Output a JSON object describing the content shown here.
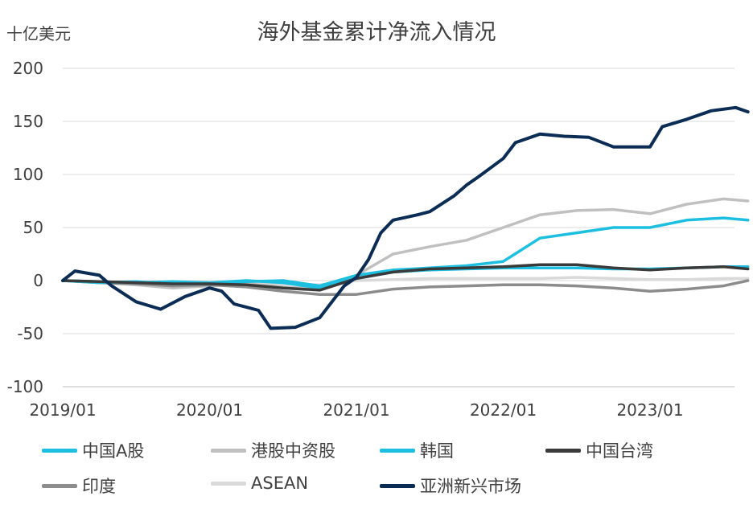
{
  "chart_data": {
    "type": "line",
    "title": "海外基金累计净流入情况",
    "unit_label": "十亿美元",
    "ylim": [
      -100,
      200
    ],
    "yticks": [
      "200",
      "150",
      "100",
      "50",
      "0",
      "-50",
      "-100"
    ],
    "xticks": [
      "2019/01",
      "2020/01",
      "2021/01",
      "2022/01",
      "2023/01"
    ],
    "grid": true,
    "legend_position": "bottom",
    "series": [
      {
        "name": "中国A股",
        "color": "#1CBFE0",
        "points": [
          [
            "2019-01",
            0
          ],
          [
            "2019-04",
            -2
          ],
          [
            "2019-07",
            -1
          ],
          [
            "2019-10",
            -3
          ],
          [
            "2020-01",
            -3
          ],
          [
            "2020-04",
            -1
          ],
          [
            "2020-07",
            0
          ],
          [
            "2020-10",
            -5
          ],
          [
            "2021-01",
            5
          ],
          [
            "2021-04",
            10
          ],
          [
            "2021-07",
            12
          ],
          [
            "2021-10",
            14
          ],
          [
            "2022-01",
            18
          ],
          [
            "2022-04",
            40
          ],
          [
            "2022-07",
            45
          ],
          [
            "2022-10",
            50
          ],
          [
            "2023-01",
            50
          ],
          [
            "2023-04",
            57
          ],
          [
            "2023-07",
            59
          ],
          [
            "2023-09",
            57
          ]
        ]
      },
      {
        "name": "港股中资股",
        "color": "#C0C0C0",
        "points": [
          [
            "2019-01",
            0
          ],
          [
            "2019-04",
            -2
          ],
          [
            "2019-07",
            -4
          ],
          [
            "2019-10",
            -7
          ],
          [
            "2020-01",
            -5
          ],
          [
            "2020-04",
            -3
          ],
          [
            "2020-07",
            -6
          ],
          [
            "2020-10",
            -8
          ],
          [
            "2021-01",
            5
          ],
          [
            "2021-04",
            25
          ],
          [
            "2021-07",
            32
          ],
          [
            "2021-10",
            38
          ],
          [
            "2022-01",
            50
          ],
          [
            "2022-04",
            62
          ],
          [
            "2022-07",
            66
          ],
          [
            "2022-10",
            67
          ],
          [
            "2023-01",
            63
          ],
          [
            "2023-04",
            72
          ],
          [
            "2023-07",
            77
          ],
          [
            "2023-09",
            75
          ]
        ]
      },
      {
        "name": "韩国",
        "color": "#1CBFE0",
        "points": [
          [
            "2019-01",
            0
          ],
          [
            "2019-04",
            -1
          ],
          [
            "2019-07",
            -2
          ],
          [
            "2019-10",
            -1
          ],
          [
            "2020-01",
            -2
          ],
          [
            "2020-04",
            0
          ],
          [
            "2020-07",
            -2
          ],
          [
            "2020-10",
            -7
          ],
          [
            "2021-01",
            2
          ],
          [
            "2021-04",
            8
          ],
          [
            "2021-07",
            10
          ],
          [
            "2021-10",
            11
          ],
          [
            "2022-01",
            12
          ],
          [
            "2022-04",
            12
          ],
          [
            "2022-07",
            12
          ],
          [
            "2022-10",
            11
          ],
          [
            "2023-01",
            11
          ],
          [
            "2023-04",
            12
          ],
          [
            "2023-07",
            13
          ],
          [
            "2023-09",
            13
          ]
        ]
      },
      {
        "name": "中国台湾",
        "color": "#3A3A3A",
        "points": [
          [
            "2019-01",
            0
          ],
          [
            "2019-04",
            -1
          ],
          [
            "2019-07",
            -2
          ],
          [
            "2019-10",
            -3
          ],
          [
            "2020-01",
            -3
          ],
          [
            "2020-04",
            -4
          ],
          [
            "2020-07",
            -7
          ],
          [
            "2020-10",
            -9
          ],
          [
            "2021-01",
            2
          ],
          [
            "2021-04",
            8
          ],
          [
            "2021-07",
            11
          ],
          [
            "2021-10",
            12
          ],
          [
            "2022-01",
            13
          ],
          [
            "2022-04",
            15
          ],
          [
            "2022-07",
            15
          ],
          [
            "2022-10",
            12
          ],
          [
            "2023-01",
            10
          ],
          [
            "2023-04",
            12
          ],
          [
            "2023-07",
            13
          ],
          [
            "2023-09",
            11
          ]
        ]
      },
      {
        "name": "印度",
        "color": "#8C8C8C",
        "points": [
          [
            "2019-01",
            0
          ],
          [
            "2019-04",
            -2
          ],
          [
            "2019-07",
            -3
          ],
          [
            "2019-10",
            -5
          ],
          [
            "2020-01",
            -4
          ],
          [
            "2020-04",
            -6
          ],
          [
            "2020-07",
            -10
          ],
          [
            "2020-10",
            -13
          ],
          [
            "2021-01",
            -13
          ],
          [
            "2021-04",
            -8
          ],
          [
            "2021-07",
            -6
          ],
          [
            "2021-10",
            -5
          ],
          [
            "2022-01",
            -4
          ],
          [
            "2022-04",
            -4
          ],
          [
            "2022-07",
            -5
          ],
          [
            "2022-10",
            -7
          ],
          [
            "2023-01",
            -10
          ],
          [
            "2023-04",
            -8
          ],
          [
            "2023-07",
            -5
          ],
          [
            "2023-09",
            0
          ]
        ]
      },
      {
        "name": "ASEAN",
        "color": "#D9D9D9",
        "points": [
          [
            "2019-01",
            0
          ],
          [
            "2019-04",
            -1
          ],
          [
            "2019-07",
            -2
          ],
          [
            "2019-10",
            -3
          ],
          [
            "2020-01",
            -3
          ],
          [
            "2020-04",
            -2
          ],
          [
            "2020-07",
            -3
          ],
          [
            "2020-10",
            -4
          ],
          [
            "2021-01",
            0
          ],
          [
            "2021-04",
            1
          ],
          [
            "2021-07",
            2
          ],
          [
            "2021-10",
            2
          ],
          [
            "2022-01",
            2
          ],
          [
            "2022-04",
            2
          ],
          [
            "2022-07",
            3
          ],
          [
            "2022-10",
            2
          ],
          [
            "2023-01",
            1
          ],
          [
            "2023-04",
            1
          ],
          [
            "2023-07",
            2
          ],
          [
            "2023-09",
            2
          ]
        ]
      },
      {
        "name": "亚洲新兴市场",
        "color": "#0B2D55",
        "points": [
          [
            "2019-01",
            0
          ],
          [
            "2019-02",
            9
          ],
          [
            "2019-04",
            5
          ],
          [
            "2019-05",
            -5
          ],
          [
            "2019-07",
            -20
          ],
          [
            "2019-09",
            -27
          ],
          [
            "2019-11",
            -15
          ],
          [
            "2020-01",
            -7
          ],
          [
            "2020-02",
            -10
          ],
          [
            "2020-03",
            -22
          ],
          [
            "2020-05",
            -28
          ],
          [
            "2020-06",
            -45
          ],
          [
            "2020-08",
            -44
          ],
          [
            "2020-10",
            -35
          ],
          [
            "2020-12",
            -5
          ],
          [
            "2021-01",
            3
          ],
          [
            "2021-02",
            20
          ],
          [
            "2021-03",
            45
          ],
          [
            "2021-04",
            57
          ],
          [
            "2021-06",
            62
          ],
          [
            "2021-07",
            65
          ],
          [
            "2021-09",
            80
          ],
          [
            "2021-10",
            90
          ],
          [
            "2021-11",
            98
          ],
          [
            "2022-01",
            115
          ],
          [
            "2022-02",
            130
          ],
          [
            "2022-04",
            138
          ],
          [
            "2022-06",
            136
          ],
          [
            "2022-08",
            135
          ],
          [
            "2022-10",
            126
          ],
          [
            "2022-12",
            126
          ],
          [
            "2023-01",
            126
          ],
          [
            "2023-02",
            145
          ],
          [
            "2023-04",
            152
          ],
          [
            "2023-06",
            160
          ],
          [
            "2023-08",
            163
          ],
          [
            "2023-09",
            159
          ]
        ]
      }
    ]
  }
}
